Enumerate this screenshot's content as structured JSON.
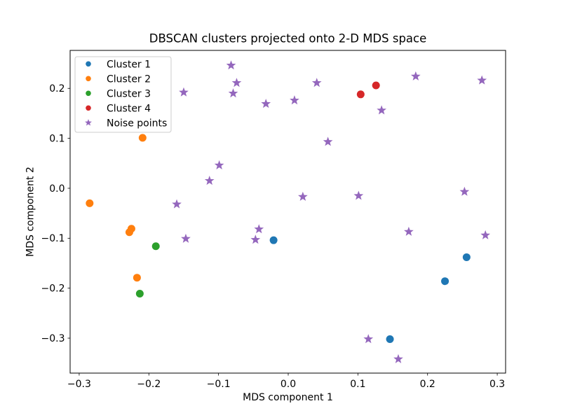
{
  "chart_data": {
    "type": "scatter",
    "title": "DBSCAN clusters projected onto 2-D MDS space",
    "xlabel": "MDS component 1",
    "ylabel": "MDS component 2",
    "xlim": [
      -0.313,
      0.312
    ],
    "ylim": [
      -0.37,
      0.276
    ],
    "grid": false,
    "x_ticks": {
      "values": [
        -0.3,
        -0.2,
        -0.1,
        0.0,
        0.1,
        0.2,
        0.3
      ],
      "labels": [
        "−0.3",
        "−0.2",
        "−0.1",
        "0.0",
        "0.1",
        "0.2",
        "0.3"
      ]
    },
    "y_ticks": {
      "values": [
        0.2,
        0.1,
        0.0,
        -0.1,
        -0.2,
        -0.3
      ],
      "labels": [
        "0.2",
        "0.1",
        "0.0",
        "−0.1",
        "−0.2",
        "−0.3"
      ]
    },
    "legend": {
      "position": "upper left",
      "entries": [
        "Cluster 1",
        "Cluster 2",
        "Cluster 3",
        "Cluster 4",
        "Noise points"
      ]
    },
    "series": [
      {
        "name": "Cluster 1",
        "marker": "circle",
        "color": "#1f77b4",
        "points": [
          [
            -0.021,
            -0.104
          ],
          [
            0.256,
            -0.138
          ],
          [
            0.225,
            -0.186
          ],
          [
            0.146,
            -0.302
          ]
        ]
      },
      {
        "name": "Cluster 2",
        "marker": "circle",
        "color": "#ff7f0e",
        "points": [
          [
            -0.209,
            0.101
          ],
          [
            -0.285,
            -0.03
          ],
          [
            -0.225,
            -0.081
          ],
          [
            -0.228,
            -0.088
          ],
          [
            -0.217,
            -0.179
          ]
        ]
      },
      {
        "name": "Cluster 3",
        "marker": "circle",
        "color": "#2ca02c",
        "points": [
          [
            -0.19,
            -0.116
          ],
          [
            -0.213,
            -0.211
          ]
        ]
      },
      {
        "name": "Cluster 4",
        "marker": "circle",
        "color": "#d62728",
        "points": [
          [
            0.104,
            0.188
          ],
          [
            0.126,
            0.206
          ]
        ]
      },
      {
        "name": "Noise points",
        "marker": "star",
        "color": "#9467bd",
        "points": [
          [
            -0.082,
            0.246
          ],
          [
            -0.074,
            0.211
          ],
          [
            -0.079,
            0.19
          ],
          [
            -0.15,
            0.192
          ],
          [
            -0.032,
            0.169
          ],
          [
            0.041,
            0.211
          ],
          [
            0.183,
            0.224
          ],
          [
            0.278,
            0.216
          ],
          [
            0.009,
            0.176
          ],
          [
            0.134,
            0.156
          ],
          [
            0.057,
            0.093
          ],
          [
            -0.099,
            0.046
          ],
          [
            -0.113,
            0.015
          ],
          [
            0.021,
            -0.017
          ],
          [
            0.101,
            -0.015
          ],
          [
            0.253,
            -0.007
          ],
          [
            -0.16,
            -0.032
          ],
          [
            -0.147,
            -0.101
          ],
          [
            -0.042,
            -0.082
          ],
          [
            -0.047,
            -0.103
          ],
          [
            0.173,
            -0.087
          ],
          [
            0.283,
            -0.094
          ],
          [
            0.115,
            -0.302
          ],
          [
            0.158,
            -0.342
          ]
        ]
      }
    ]
  },
  "style": {
    "background": "#ffffff",
    "axes_color": "#000000",
    "legend_border": "#cccccc",
    "legend_background": "#ffffff"
  }
}
